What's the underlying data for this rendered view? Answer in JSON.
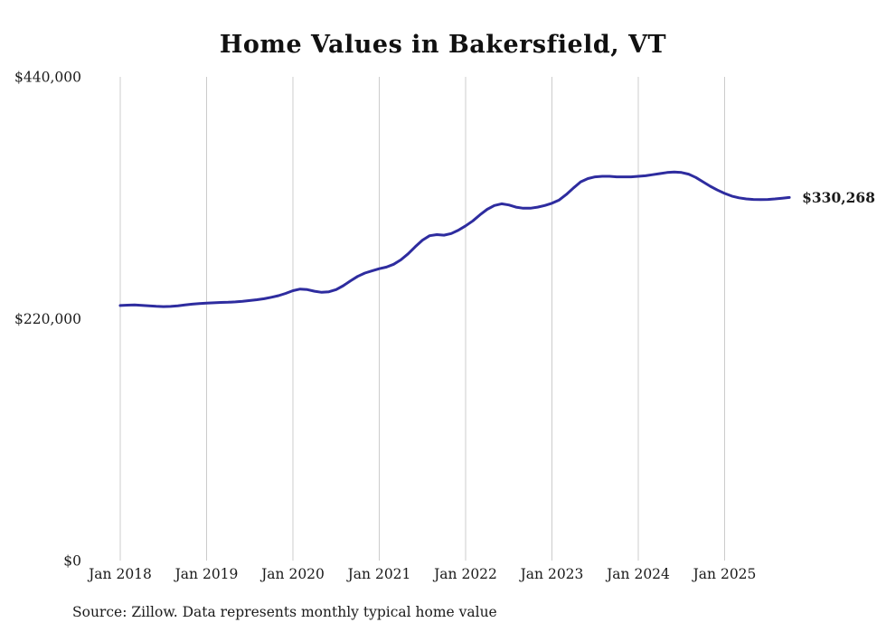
{
  "chart": {
    "title": "Home Values in Bakersfield, VT",
    "source_note": "Source: Zillow. Data represents monthly typical home value",
    "end_label": "$330,268"
  },
  "chart_data": {
    "type": "line",
    "title": "Home Values in Bakersfield, VT",
    "x_start": "Jan 2018",
    "x_interval": "monthly",
    "x_tick_labels": [
      "Jan 2018",
      "Jan 2019",
      "Jan 2020",
      "Jan 2021",
      "Jan 2022",
      "Jan 2023",
      "Jan 2024",
      "Jan 2025"
    ],
    "y_ticks": [
      {
        "value": 0,
        "label": "$0"
      },
      {
        "value": 220000,
        "label": "$220,000"
      },
      {
        "value": 440000,
        "label": "$440,000"
      }
    ],
    "ylim": [
      0,
      440000
    ],
    "grid": "vertical-only",
    "legend": "none",
    "line_color": "#2e2c9f",
    "grid_color": "#cccccc",
    "text_color": "#1a1a1a",
    "final_value": 330268,
    "final_value_label": "$330,268",
    "series": [
      {
        "name": "Typical home value",
        "values": [
          232000,
          232300,
          232500,
          232200,
          231800,
          231300,
          231000,
          231200,
          231800,
          232500,
          233200,
          233800,
          234200,
          234500,
          234800,
          235000,
          235300,
          235800,
          236500,
          237300,
          238200,
          239500,
          241000,
          243000,
          245500,
          247000,
          246500,
          245000,
          244000,
          244500,
          246500,
          250000,
          254500,
          258500,
          261500,
          263500,
          265500,
          267000,
          269500,
          273500,
          279000,
          285500,
          291500,
          295500,
          296500,
          296000,
          297500,
          300500,
          304500,
          309000,
          314500,
          319500,
          323000,
          324500,
          323500,
          321500,
          320500,
          320500,
          321500,
          323000,
          325000,
          328000,
          333000,
          339000,
          344500,
          347500,
          349000,
          349500,
          349500,
          349000,
          349000,
          349000,
          349500,
          350000,
          351000,
          352000,
          353000,
          353500,
          353000,
          351500,
          348500,
          344500,
          340500,
          337000,
          334000,
          331500,
          330000,
          329000,
          328500,
          328300,
          328500,
          329000,
          329600,
          330268
        ]
      }
    ]
  }
}
